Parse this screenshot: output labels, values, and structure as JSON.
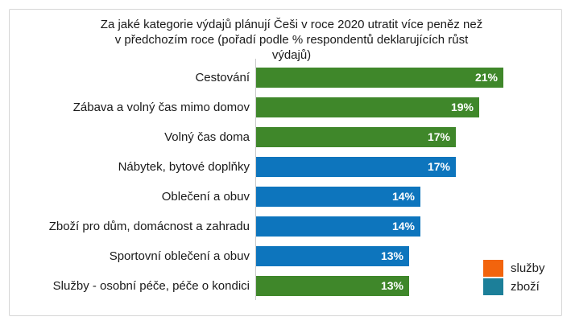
{
  "chart_data": {
    "type": "bar",
    "orientation": "horizontal",
    "title": "Za jaké kategorie výdajů plánují Češi v roce 2020 utratit více peněz než v předchozím roce (pořadí podle % respondentů deklarujících růst výdajů)",
    "title_lines": [
      "Za jaké kategorie výdajů plánují Češi v roce 2020 utratit více peněz než",
      "v předchozím roce (pořadí podle % respondentů deklarujících růst",
      "výdajů)"
    ],
    "categories": [
      "Cestování",
      "Zábava a volný čas mimo domov",
      "Volný čas doma",
      "Nábytek, bytové doplňky",
      "Oblečení a obuv",
      "Zboží pro dům, domácnost a zahradu",
      "Sportovní oblečení a obuv",
      "Služby - osobní péče, péče o kondici"
    ],
    "values": [
      21,
      19,
      17,
      17,
      14,
      14,
      13,
      13
    ],
    "value_labels": [
      "21%",
      "19%",
      "17%",
      "17%",
      "14%",
      "14%",
      "13%",
      "13%"
    ],
    "bar_colors": [
      "#3f872a",
      "#3f872a",
      "#3f872a",
      "#0d75bd",
      "#0d75bd",
      "#0d75bd",
      "#0d75bd",
      "#3f872a"
    ],
    "xlim": [
      0,
      21
    ],
    "grid": false,
    "legend_position": "bottom-right",
    "legend": [
      {
        "label": "služby",
        "color": "#f2640d"
      },
      {
        "label": "zboží",
        "color": "#1c7f99"
      }
    ],
    "colors": {
      "green_bar": "#3f872a",
      "blue_bar": "#0d75bd",
      "legend_orange": "#f2640d",
      "legend_teal": "#1c7f99",
      "axis_line": "#c9c9c9",
      "card_border": "#d6d6d6"
    }
  }
}
